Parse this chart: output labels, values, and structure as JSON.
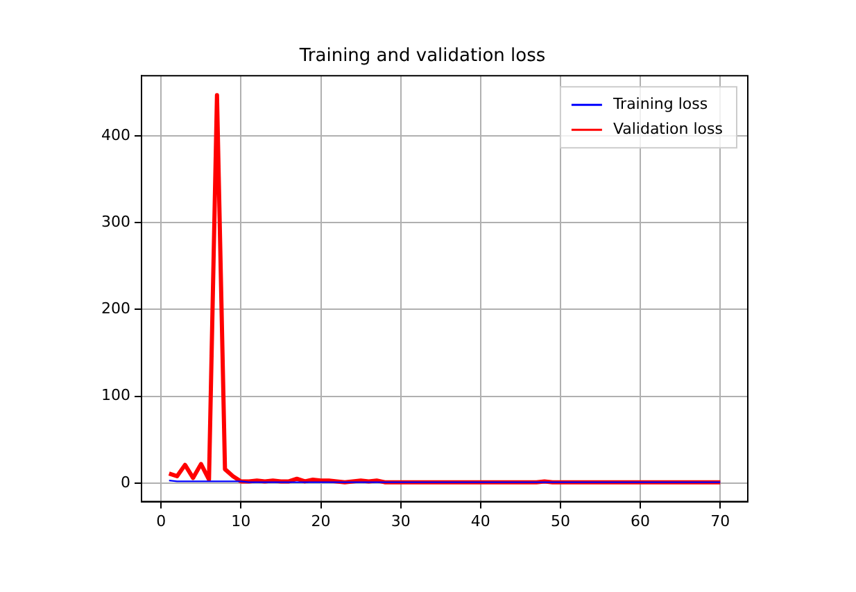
{
  "chart_data": {
    "type": "line",
    "title": "Training and validation loss",
    "x": [
      1,
      2,
      3,
      4,
      5,
      6,
      7,
      8,
      9,
      10,
      11,
      12,
      13,
      14,
      15,
      16,
      17,
      18,
      19,
      20,
      21,
      22,
      23,
      24,
      25,
      26,
      27,
      28,
      29,
      30,
      31,
      32,
      33,
      34,
      35,
      36,
      37,
      38,
      39,
      40,
      41,
      42,
      43,
      44,
      45,
      46,
      47,
      48,
      49,
      50,
      51,
      52,
      53,
      54,
      55,
      56,
      57,
      58,
      59,
      60,
      61,
      62,
      63,
      64,
      65,
      66,
      67,
      68,
      69,
      70
    ],
    "series": [
      {
        "name": "Training loss",
        "color": "#0000ff",
        "values": [
          3,
          2,
          2,
          2,
          2,
          2,
          2,
          2,
          2,
          2,
          1,
          1,
          1,
          1,
          1,
          1,
          1,
          1,
          1,
          1,
          1,
          1,
          1,
          1,
          1,
          1,
          1,
          1,
          1,
          1,
          1,
          1,
          1,
          1,
          1,
          1,
          1,
          1,
          1,
          1,
          1,
          1,
          1,
          1,
          1,
          1,
          1,
          1,
          1,
          1,
          1,
          1,
          1,
          1,
          1,
          1,
          1,
          1,
          1,
          1,
          1,
          1,
          1,
          1,
          1,
          1,
          1,
          1,
          1,
          1
        ]
      },
      {
        "name": "Validation loss",
        "color": "#ff0000",
        "values": [
          11,
          8,
          21,
          6,
          22,
          4,
          447,
          16,
          8,
          2,
          2,
          3,
          2,
          3,
          2,
          2,
          5,
          2,
          4,
          3,
          3,
          2,
          1,
          2,
          3,
          2,
          3,
          1,
          1,
          1,
          1,
          1,
          1,
          1,
          1,
          1,
          1,
          1,
          1,
          1,
          1,
          1,
          1,
          1,
          1,
          1,
          1,
          2,
          1,
          1,
          1,
          1,
          1,
          1,
          1,
          1,
          1,
          1,
          1,
          1,
          1,
          1,
          1,
          1,
          1,
          1,
          1,
          1,
          1,
          1
        ]
      }
    ],
    "xlim": [
      -2.45,
      73.45
    ],
    "xticks": [
      0,
      10,
      20,
      30,
      40,
      50,
      60,
      70
    ],
    "ylim": [
      -21.3,
      469.3
    ],
    "yticks": [
      0,
      100,
      200,
      300,
      400
    ],
    "grid": true,
    "legend": "top right",
    "marker": "none",
    "line_style": "solid"
  }
}
